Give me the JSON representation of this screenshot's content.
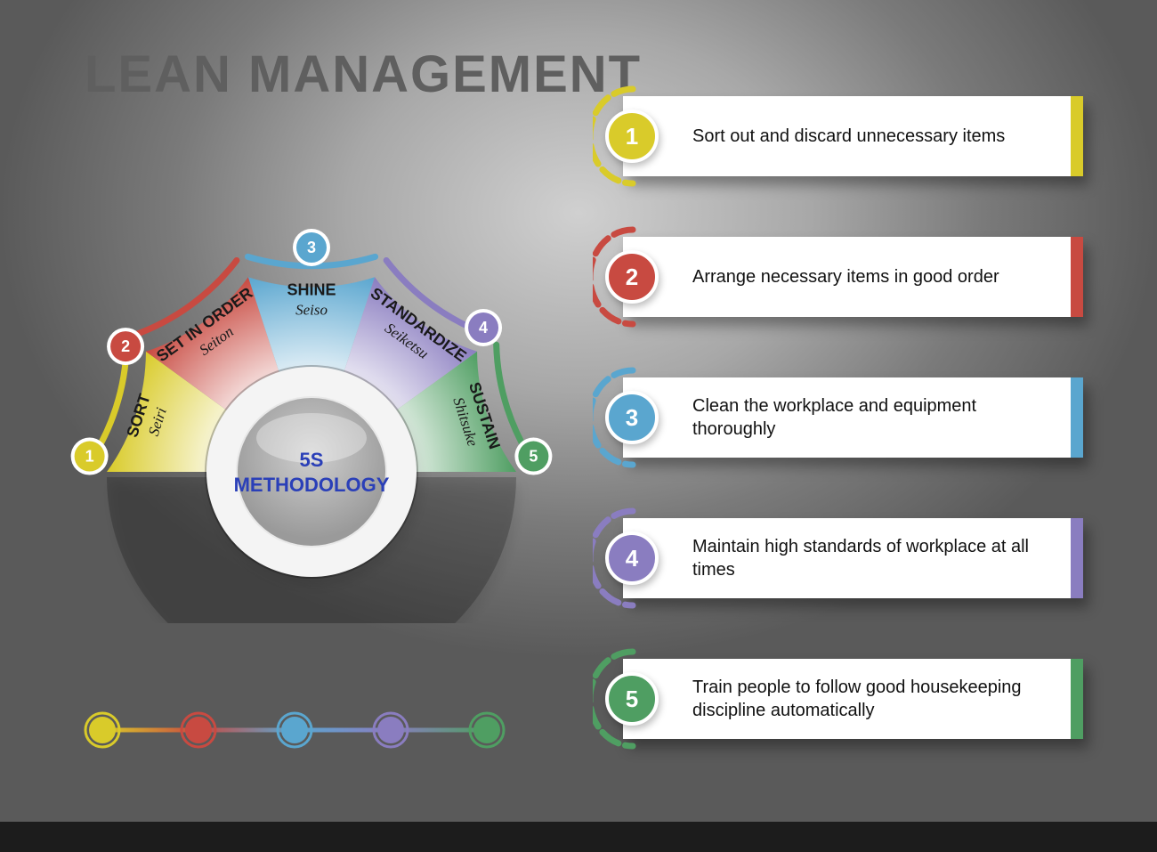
{
  "title": "LEAN MANAGEMENT",
  "center": {
    "line1": "5S",
    "line2": "METHODOLOGY"
  },
  "colors": {
    "yellow": "#d9cb2a",
    "red": "#c84a41",
    "blue": "#5aa6cf",
    "purple": "#8a7dc0",
    "green": "#4f9e62",
    "title": "#5f5f5f",
    "center_text": "#2a3fb8",
    "card_bg": "#ffffff",
    "card_text": "#111111"
  },
  "fan": {
    "outer_r": 230,
    "inner_r": 95,
    "arc_r": 252,
    "arc_gap_deg": 3,
    "badge_r": 17,
    "segments": [
      {
        "color_key": "yellow",
        "en": "SORT",
        "jp": "Seiri"
      },
      {
        "color_key": "red",
        "en": "SET IN ORDER",
        "jp": "Seiton"
      },
      {
        "color_key": "blue",
        "en": "SHINE",
        "jp": "Seiso"
      },
      {
        "color_key": "purple",
        "en": "STANDARDIZE",
        "jp": "Seiketsu"
      },
      {
        "color_key": "green",
        "en": "SUSTAIN",
        "jp": "Shitsuke"
      }
    ]
  },
  "cards": [
    {
      "num": "1",
      "color_key": "yellow",
      "text": "Sort out and discard unnecessary items"
    },
    {
      "num": "2",
      "color_key": "red",
      "text": "Arrange necessary items in good order"
    },
    {
      "num": "3",
      "color_key": "blue",
      "text": "Clean the workplace and equipment thoroughly"
    },
    {
      "num": "4",
      "color_key": "purple",
      "text": "Maintain high standards  of workplace at all times"
    },
    {
      "num": "5",
      "color_key": "green",
      "text": "Train people to follow good housekeeping discipline automatically"
    }
  ],
  "bottom_strip": {
    "dot_r": 15,
    "ring_r": 19,
    "gap": 108
  }
}
